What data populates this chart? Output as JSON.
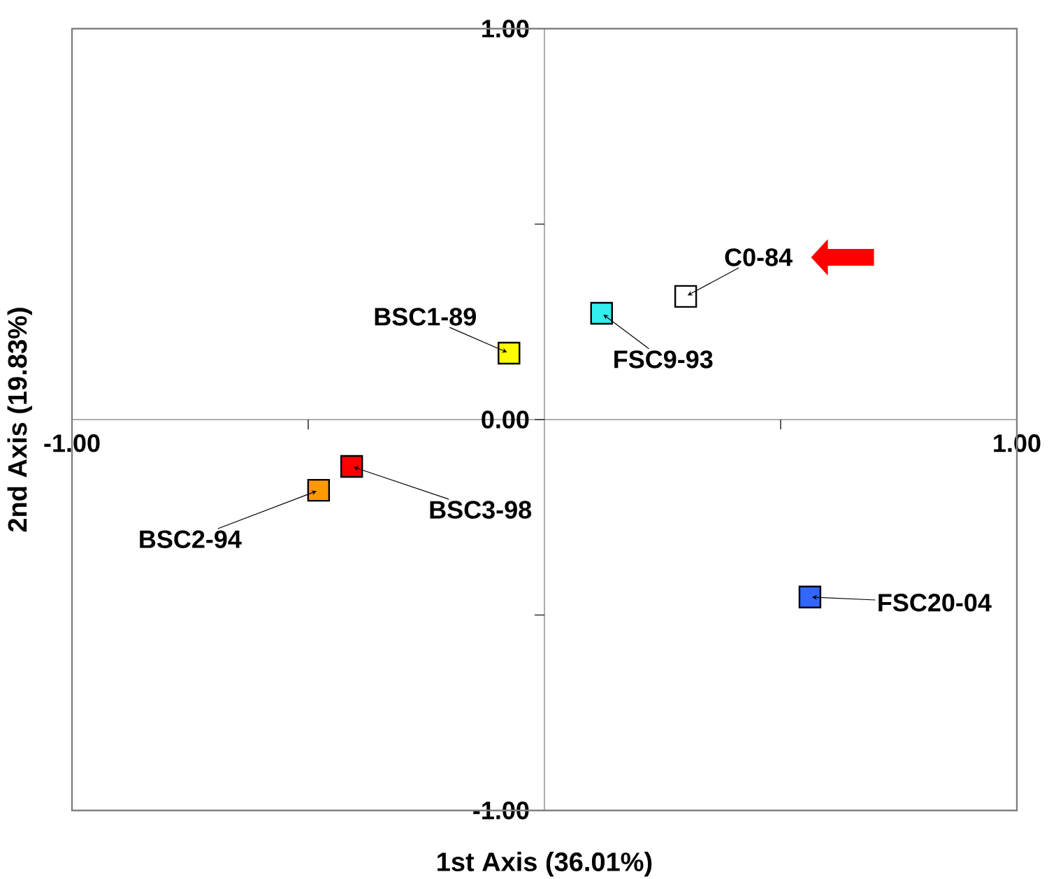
{
  "chart_data": {
    "type": "scatter",
    "xlabel": "1st Axis (36.01%)",
    "ylabel": "2nd Axis (19.83%)",
    "x": [
      0.299,
      0.121,
      -0.075,
      -0.408,
      -0.478,
      0.562
    ],
    "values": [
      0.315,
      0.272,
      0.17,
      -0.12,
      -0.181,
      -0.454
    ],
    "colors": [
      "#ffffff",
      "#33eeee",
      "#ffff00",
      "#ff0000",
      "#ff9900",
      "#3366ff"
    ],
    "marker": "square",
    "xlim": [
      -1,
      1
    ],
    "ylim": [
      -1,
      1
    ],
    "xticks": [
      {
        "value": -1,
        "label": "-1.00"
      },
      {
        "value": -0.5,
        "label": null
      },
      {
        "value": 0.5,
        "label": null
      },
      {
        "value": 1,
        "label": "1.00"
      }
    ],
    "yticks": [
      {
        "value": -1,
        "label": "-1.00"
      },
      {
        "value": -0.5,
        "label": null
      },
      {
        "value": 0,
        "label": "0.00"
      },
      {
        "value": 0.5,
        "label": null
      },
      {
        "value": 1,
        "label": "1.00"
      }
    ],
    "annotations": [
      {
        "text": "C0-84",
        "x": 0.299,
        "y": 0.315
      },
      {
        "text": "FSC9-93",
        "x": 0.121,
        "y": 0.272
      },
      {
        "text": "BSC1-89",
        "x": -0.075,
        "y": 0.17
      },
      {
        "text": "BSC3-98",
        "x": -0.408,
        "y": -0.12
      },
      {
        "text": "BSC2-94",
        "x": -0.478,
        "y": -0.181
      },
      {
        "text": "FSC20-04",
        "x": 0.562,
        "y": -0.454
      }
    ]
  }
}
